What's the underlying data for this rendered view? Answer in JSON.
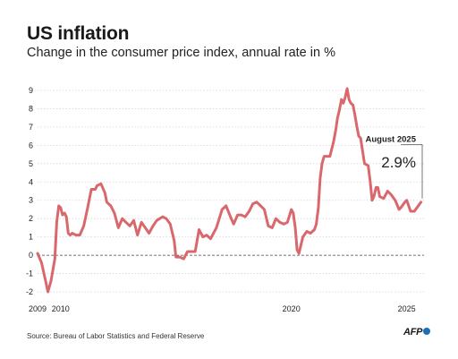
{
  "header": {
    "title": "US inflation",
    "subtitle": "Change in the consumer price index, annual rate in %"
  },
  "footer": {
    "source": "Source: Bureau of Labor Statistics and Federal Reserve",
    "logo": "AFP"
  },
  "chart_data": {
    "type": "line",
    "title": "US inflation",
    "subtitle": "Change in the consumer price index, annual rate in %",
    "ylim": [
      -2,
      9
    ],
    "y_ticks": [
      "9",
      "8",
      "7",
      "6",
      "5",
      "4",
      "3",
      "2",
      "1",
      "0",
      "-1",
      "-2"
    ],
    "x_ticks": [
      {
        "x": 2009.0,
        "label": "2009"
      },
      {
        "x": 2010.0,
        "label": "2010"
      },
      {
        "x": 2020.0,
        "label": "2020"
      },
      {
        "x": 2025.0,
        "label": "2025"
      }
    ],
    "xlim": [
      2009.0,
      2025.75
    ],
    "grid": true,
    "line_color": "#d9686d",
    "annotation": {
      "label": "August 2025",
      "value": "2.9%",
      "x": 2025.62,
      "y": 2.9
    },
    "series": [
      {
        "x": [
          2009.0,
          2009.17,
          2009.33,
          2009.45,
          2009.58,
          2009.75,
          2009.83,
          2009.92,
          2010.0,
          2010.08,
          2010.17,
          2010.25,
          2010.33,
          2010.42,
          2010.5,
          2010.67,
          2010.83,
          2011.0,
          2011.17,
          2011.33,
          2011.5,
          2011.58,
          2011.75,
          2011.92,
          2012.0,
          2012.17,
          2012.33,
          2012.5,
          2012.67,
          2012.83,
          2013.0,
          2013.17,
          2013.33,
          2013.5,
          2013.67,
          2013.83,
          2014.0,
          2014.17,
          2014.42,
          2014.58,
          2014.75,
          2014.92,
          2015.0,
          2015.17,
          2015.33,
          2015.5,
          2015.67,
          2015.83,
          2016.0,
          2016.17,
          2016.33,
          2016.5,
          2016.75,
          2017.0,
          2017.17,
          2017.33,
          2017.5,
          2017.67,
          2017.83,
          2018.0,
          2018.17,
          2018.33,
          2018.5,
          2018.67,
          2018.83,
          2019.0,
          2019.17,
          2019.33,
          2019.5,
          2019.67,
          2019.83,
          2020.0,
          2020.08,
          2020.17,
          2020.25,
          2020.33,
          2020.5,
          2020.67,
          2020.83,
          2021.0,
          2021.08,
          2021.17,
          2021.25,
          2021.33,
          2021.42,
          2021.5,
          2021.67,
          2021.83,
          2021.92,
          2022.0,
          2022.08,
          2022.17,
          2022.25,
          2022.33,
          2022.42,
          2022.5,
          2022.58,
          2022.67,
          2022.75,
          2022.83,
          2022.92,
          2023.0,
          2023.17,
          2023.33,
          2023.42,
          2023.5,
          2023.58,
          2023.67,
          2023.75,
          2023.83,
          2024.0,
          2024.17,
          2024.33,
          2024.5,
          2024.67,
          2024.75,
          2024.92,
          2025.0,
          2025.17,
          2025.33,
          2025.5,
          2025.62
        ],
        "y": [
          0.1,
          -0.4,
          -1.3,
          -2.0,
          -1.4,
          -0.2,
          1.8,
          2.7,
          2.6,
          2.2,
          2.3,
          2.1,
          1.2,
          1.1,
          1.2,
          1.1,
          1.1,
          1.6,
          2.6,
          3.6,
          3.6,
          3.8,
          3.9,
          3.4,
          2.9,
          2.7,
          2.3,
          1.5,
          2.0,
          1.8,
          1.6,
          1.9,
          1.1,
          1.8,
          1.5,
          1.2,
          1.6,
          1.9,
          2.1,
          2.0,
          1.7,
          0.8,
          -0.1,
          -0.1,
          -0.2,
          0.2,
          0.2,
          0.2,
          1.4,
          1.0,
          1.1,
          0.9,
          1.5,
          2.5,
          2.7,
          2.2,
          1.7,
          2.2,
          2.2,
          2.1,
          2.4,
          2.8,
          2.9,
          2.7,
          2.5,
          1.6,
          1.5,
          2.0,
          1.8,
          1.7,
          1.8,
          2.5,
          2.3,
          1.5,
          0.3,
          0.1,
          1.0,
          1.3,
          1.2,
          1.4,
          1.7,
          2.6,
          4.2,
          5.0,
          5.4,
          5.4,
          5.4,
          6.2,
          6.8,
          7.5,
          7.9,
          8.5,
          8.3,
          8.6,
          9.1,
          8.5,
          8.3,
          8.2,
          7.7,
          7.1,
          6.5,
          6.4,
          5.0,
          4.9,
          4.0,
          3.0,
          3.2,
          3.7,
          3.7,
          3.2,
          3.1,
          3.5,
          3.3,
          3.0,
          2.5,
          2.6,
          2.9,
          3.0,
          2.4,
          2.4,
          2.7,
          2.9
        ]
      }
    ]
  }
}
